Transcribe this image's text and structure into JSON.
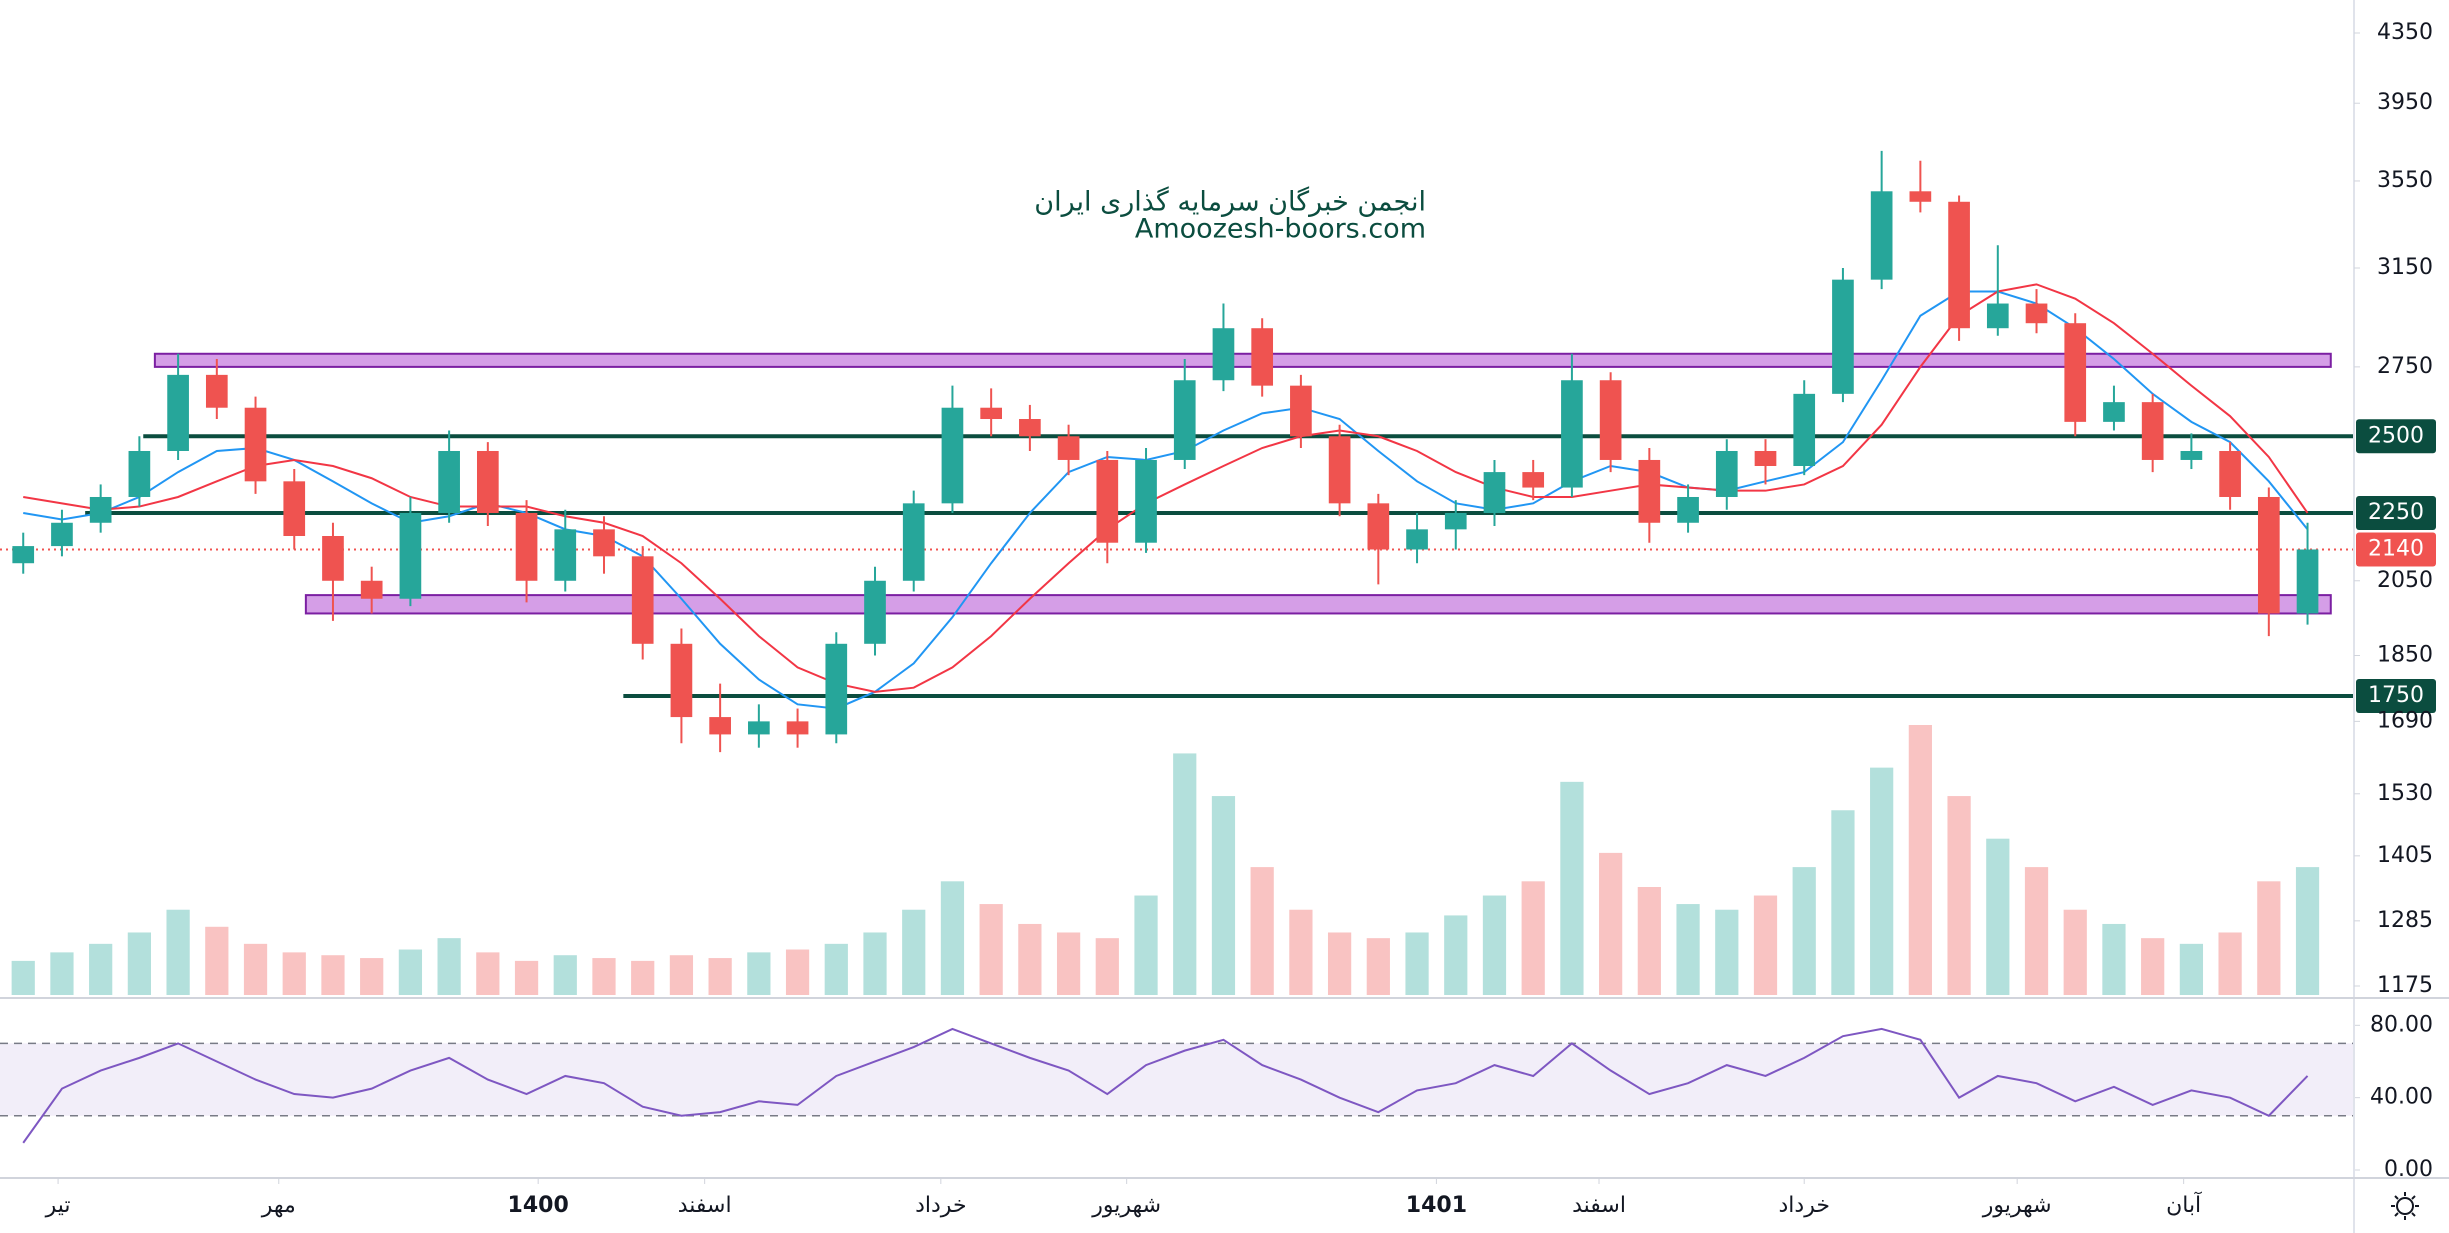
{
  "chart_data": {
    "type": "candlestick",
    "watermark": [
      "انجمن خبرگان سرمایه گذاری ایران",
      "Amoozesh-boors.com"
    ],
    "scale": "log",
    "ylim": [
      1175,
      4350
    ],
    "yticks": [
      4350,
      3950,
      3550,
      3150,
      2750,
      2050,
      1850,
      1690,
      1530,
      1405,
      1285,
      1175
    ],
    "xlim": [
      -0.6,
      60.2
    ],
    "xticks": [
      {
        "value": 0.9,
        "label": "تیر"
      },
      {
        "value": 6.6,
        "label": "مهر"
      },
      {
        "value": 13.3,
        "label": "1400"
      },
      {
        "value": 17.6,
        "label": "اسفند"
      },
      {
        "value": 23.7,
        "label": "خرداد"
      },
      {
        "value": 28.5,
        "label": "شهریور"
      },
      {
        "value": 36.5,
        "label": "1401"
      },
      {
        "value": 40.7,
        "label": "اسفند"
      },
      {
        "value": 46,
        "label": "خرداد"
      },
      {
        "value": 51.5,
        "label": "شهریور"
      },
      {
        "value": 55.8,
        "label": "آبان"
      }
    ],
    "up_color": "#26a69a",
    "down_color": "#ef5350",
    "open": [
      2100,
      2150,
      2220,
      2300,
      2450,
      2720,
      2600,
      2350,
      2180,
      2050,
      2000,
      2250,
      2450,
      2250,
      2050,
      2200,
      2120,
      1880,
      1700,
      1660,
      1690,
      1660,
      1880,
      2050,
      2280,
      2600,
      2560,
      2500,
      2420,
      2160,
      2420,
      2700,
      2900,
      2680,
      2500,
      2280,
      2140,
      2200,
      2250,
      2380,
      2330,
      2700,
      2420,
      2220,
      2300,
      2450,
      2400,
      2650,
      3100,
      3500,
      3450,
      2900,
      3000,
      2920,
      2550,
      2620,
      2420,
      2450,
      2300,
      1960
    ],
    "high": [
      2190,
      2260,
      2340,
      2500,
      2800,
      2780,
      2640,
      2390,
      2220,
      2090,
      2300,
      2520,
      2480,
      2290,
      2260,
      2240,
      2150,
      1920,
      1780,
      1730,
      1720,
      1910,
      2090,
      2320,
      2680,
      2670,
      2610,
      2540,
      2450,
      2460,
      2780,
      3000,
      2940,
      2720,
      2540,
      2310,
      2250,
      2290,
      2420,
      2420,
      2800,
      2730,
      2460,
      2340,
      2490,
      2490,
      2700,
      3150,
      3700,
      3650,
      3480,
      3250,
      3060,
      2960,
      2680,
      2650,
      2510,
      2480,
      2330,
      2220
    ],
    "low": [
      2070,
      2120,
      2190,
      2270,
      2420,
      2560,
      2310,
      2140,
      1940,
      1960,
      1980,
      2220,
      2210,
      1990,
      2020,
      2070,
      1840,
      1640,
      1620,
      1630,
      1630,
      1640,
      1850,
      2020,
      2250,
      2500,
      2450,
      2370,
      2100,
      2130,
      2390,
      2660,
      2640,
      2460,
      2240,
      2040,
      2100,
      2140,
      2210,
      2290,
      2300,
      2380,
      2160,
      2190,
      2260,
      2340,
      2370,
      2620,
      3060,
      3400,
      2850,
      2870,
      2880,
      2500,
      2520,
      2380,
      2390,
      2260,
      1900,
      1930
    ],
    "close": [
      2150,
      2220,
      2300,
      2450,
      2720,
      2600,
      2350,
      2180,
      2050,
      2000,
      2250,
      2450,
      2250,
      2050,
      2200,
      2120,
      1880,
      1700,
      1660,
      1690,
      1660,
      1880,
      2050,
      2280,
      2600,
      2560,
      2500,
      2420,
      2160,
      2420,
      2700,
      2900,
      2680,
      2500,
      2280,
      2140,
      2200,
      2250,
      2380,
      2330,
      2700,
      2420,
      2220,
      2300,
      2450,
      2400,
      2650,
      3100,
      3500,
      3450,
      2900,
      3000,
      2920,
      2550,
      2620,
      2420,
      2450,
      2300,
      1960,
      2140
    ],
    "volume": [
      12,
      15,
      18,
      22,
      30,
      24,
      18,
      15,
      14,
      13,
      16,
      20,
      15,
      12,
      14,
      13,
      12,
      14,
      13,
      15,
      16,
      18,
      22,
      30,
      40,
      32,
      25,
      22,
      20,
      35,
      85,
      70,
      45,
      30,
      22,
      20,
      22,
      28,
      35,
      40,
      75,
      50,
      38,
      32,
      30,
      35,
      45,
      65,
      80,
      95,
      70,
      55,
      45,
      30,
      25,
      20,
      18,
      22,
      40,
      45
    ],
    "ma_series": [
      {
        "color": "#2196f3",
        "values": [
          2250,
          2230,
          2250,
          2300,
          2380,
          2450,
          2460,
          2420,
          2350,
          2280,
          2220,
          2240,
          2280,
          2250,
          2200,
          2180,
          2120,
          2000,
          1880,
          1790,
          1730,
          1720,
          1760,
          1830,
          1950,
          2100,
          2250,
          2380,
          2430,
          2420,
          2450,
          2520,
          2580,
          2600,
          2560,
          2450,
          2350,
          2280,
          2260,
          2280,
          2350,
          2400,
          2380,
          2330,
          2320,
          2350,
          2380,
          2480,
          2700,
          2950,
          3050,
          3050,
          3000,
          2900,
          2780,
          2650,
          2550,
          2480,
          2350,
          2200
        ]
      },
      {
        "color": "#f23645",
        "values": [
          2300,
          2280,
          2260,
          2270,
          2300,
          2350,
          2400,
          2420,
          2400,
          2360,
          2300,
          2270,
          2270,
          2270,
          2240,
          2220,
          2180,
          2100,
          2000,
          1900,
          1820,
          1780,
          1760,
          1770,
          1820,
          1900,
          2000,
          2100,
          2200,
          2280,
          2340,
          2400,
          2460,
          2500,
          2520,
          2500,
          2450,
          2380,
          2330,
          2300,
          2300,
          2320,
          2340,
          2330,
          2320,
          2320,
          2340,
          2400,
          2540,
          2750,
          2950,
          3050,
          3080,
          3020,
          2920,
          2800,
          2680,
          2570,
          2430,
          2250
        ]
      }
    ],
    "levels": [
      {
        "value": 2500,
        "label": "2500",
        "start": 3.1,
        "color": "#0b4d3f"
      },
      {
        "value": 2250,
        "label": "2250",
        "start": 1.6,
        "color": "#0b4d3f"
      },
      {
        "value": 1750,
        "label": "1750",
        "start": 15.5,
        "color": "#0b4d3f"
      }
    ],
    "zones": [
      {
        "low": 2750,
        "high": 2800,
        "start": 3.4,
        "end": 59.6,
        "color": "#b24fd3"
      },
      {
        "low": 1960,
        "high": 2010,
        "start": 7.3,
        "end": 59.6,
        "color": "#b24fd3"
      }
    ],
    "last_price": {
      "value": 2140,
      "label": "2140",
      "color": "#f05350"
    },
    "rsi": {
      "color": "#7e57c2",
      "ylim": [
        0,
        94
      ],
      "yticks": [
        {
          "value": 80,
          "label": "80.00"
        },
        {
          "value": 40,
          "label": "40.00"
        },
        {
          "value": 0,
          "label": "0.00"
        }
      ],
      "bands": [
        30,
        70
      ],
      "values": [
        15,
        45,
        55,
        62,
        70,
        60,
        50,
        42,
        40,
        45,
        55,
        62,
        50,
        42,
        52,
        48,
        35,
        30,
        32,
        38,
        36,
        52,
        60,
        68,
        78,
        70,
        62,
        55,
        42,
        58,
        66,
        72,
        58,
        50,
        40,
        32,
        44,
        48,
        58,
        52,
        70,
        55,
        42,
        48,
        58,
        52,
        62,
        74,
        78,
        72,
        40,
        52,
        48,
        38,
        46,
        36,
        44,
        40,
        30,
        52
      ]
    }
  }
}
